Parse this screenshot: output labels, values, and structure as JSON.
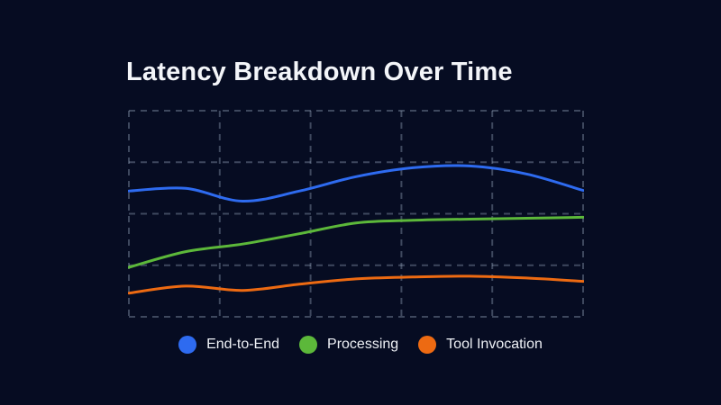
{
  "page": {
    "background": "#060c22",
    "title_color": "#f3f5f9",
    "grid_color": "rgba(148,163,184,0.4)"
  },
  "title": "Latency Breakdown Over Time",
  "chart_data": {
    "type": "line",
    "title": "Latency Breakdown Over Time",
    "xlabel": "",
    "ylabel": "",
    "x": [
      1,
      2,
      3,
      4,
      5,
      6,
      7,
      8,
      9
    ],
    "x_tick_labels_visible": false,
    "y_tick_labels_visible": false,
    "grid": true,
    "grid_style": "dashed",
    "grid_columns": 5,
    "grid_rows": 4,
    "legend_position": "bottom",
    "ylim": [
      0,
      100
    ],
    "y_units": "percent of plot height (chart shows no numeric axis labels)",
    "series": [
      {
        "name": "End-to-End",
        "color": "#2e6bf0",
        "values": [
          61.0,
          62.3,
          56.1,
          61.0,
          68.0,
          72.3,
          73.2,
          69.3,
          61.3
        ]
      },
      {
        "name": "Processing",
        "color": "#5cb83a",
        "values": [
          24.0,
          31.6,
          35.3,
          40.3,
          45.5,
          46.8,
          47.4,
          47.8,
          48.3
        ]
      },
      {
        "name": "Tool Invocation",
        "color": "#ed6a12",
        "values": [
          11.5,
          14.9,
          12.8,
          15.8,
          18.4,
          19.3,
          19.7,
          18.8,
          17.2
        ]
      }
    ]
  }
}
